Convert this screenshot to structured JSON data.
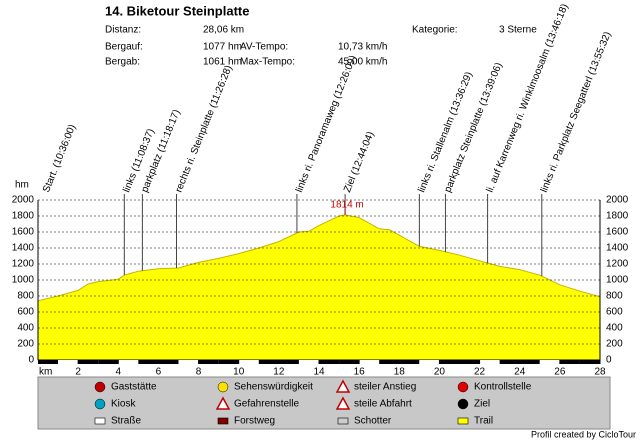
{
  "chart_data": {
    "type": "area",
    "title": "14. Biketour Steinplatte",
    "info": [
      {
        "label": "Distanz:",
        "value": "28,06 km"
      },
      {
        "label": "Bergauf:",
        "value": "1077 hm"
      },
      {
        "label": "Bergab:",
        "value": "1061 hm"
      },
      {
        "label": "AV-Tempo:",
        "value": "10,73 km/h"
      },
      {
        "label": "Max-Tempo:",
        "value": "45,00 km/h"
      },
      {
        "label": "Kategorie:",
        "value": "3 Sterne"
      }
    ],
    "x_label": "km",
    "y_label": "hm",
    "color": "#ffff00",
    "x": [
      0,
      1,
      2,
      2.5,
      3,
      4,
      4.3,
      5,
      6,
      7,
      8,
      9,
      10,
      11,
      12,
      13,
      13.5,
      14,
      15,
      15.3,
      16,
      17,
      17.5,
      18,
      19,
      20,
      21,
      22,
      23,
      24,
      25,
      26,
      27,
      28
    ],
    "values": [
      740,
      800,
      870,
      950,
      980,
      1010,
      1060,
      1110,
      1140,
      1150,
      1220,
      1270,
      1330,
      1400,
      1480,
      1600,
      1610,
      1680,
      1800,
      1814,
      1780,
      1640,
      1630,
      1560,
      1420,
      1370,
      1310,
      1240,
      1170,
      1130,
      1060,
      940,
      860,
      790
    ],
    "xlim": [
      0,
      28
    ],
    "xticks": [
      2,
      4,
      6,
      8,
      10,
      12,
      14,
      16,
      18,
      20,
      22,
      24,
      26,
      28
    ],
    "ylim": [
      0,
      2000
    ],
    "yticks": [
      0,
      200,
      400,
      600,
      800,
      1000,
      1200,
      1400,
      1600,
      1800,
      2000
    ],
    "grid": true,
    "peak": {
      "x": 15.3,
      "value": 1814,
      "label": "1814 m"
    },
    "waypoints": [
      {
        "x": 0,
        "label": "Start. (10:36:00)"
      },
      {
        "x": 4.3,
        "label": "links (11:08:37)"
      },
      {
        "x": 5.2,
        "label": "parkplatz (11:18:17)"
      },
      {
        "x": 6.9,
        "label": "rechts ri. Steinplatte (11:26:28)"
      },
      {
        "x": 12.9,
        "label": "links ri. Panoramaweg (12:26:09)"
      },
      {
        "x": 15.3,
        "label": "Ziel (12:44:04)"
      },
      {
        "x": 19.0,
        "label": "links ri. Stallenalm (13:36:29)"
      },
      {
        "x": 20.3,
        "label": "parkplatz Steinplatte (13:39:06)"
      },
      {
        "x": 22.4,
        "label": "li. auf Karrenweg ri. Winklmoosalm (13:46:18)"
      },
      {
        "x": 25.1,
        "label": "links ri. Parkplatz Seegatterl (13:55:32)"
      }
    ],
    "legend": [
      "Gaststätte",
      "Sehenswürdigkeit",
      "steiler Anstieg",
      "Kontrollstelle",
      "Kiosk",
      "Gefahrenstelle",
      "steile Abfahrt",
      "Ziel",
      "Straße",
      "Forstweg",
      "Schotter",
      "Trail"
    ],
    "credit": "Profil created by CicloTour"
  }
}
